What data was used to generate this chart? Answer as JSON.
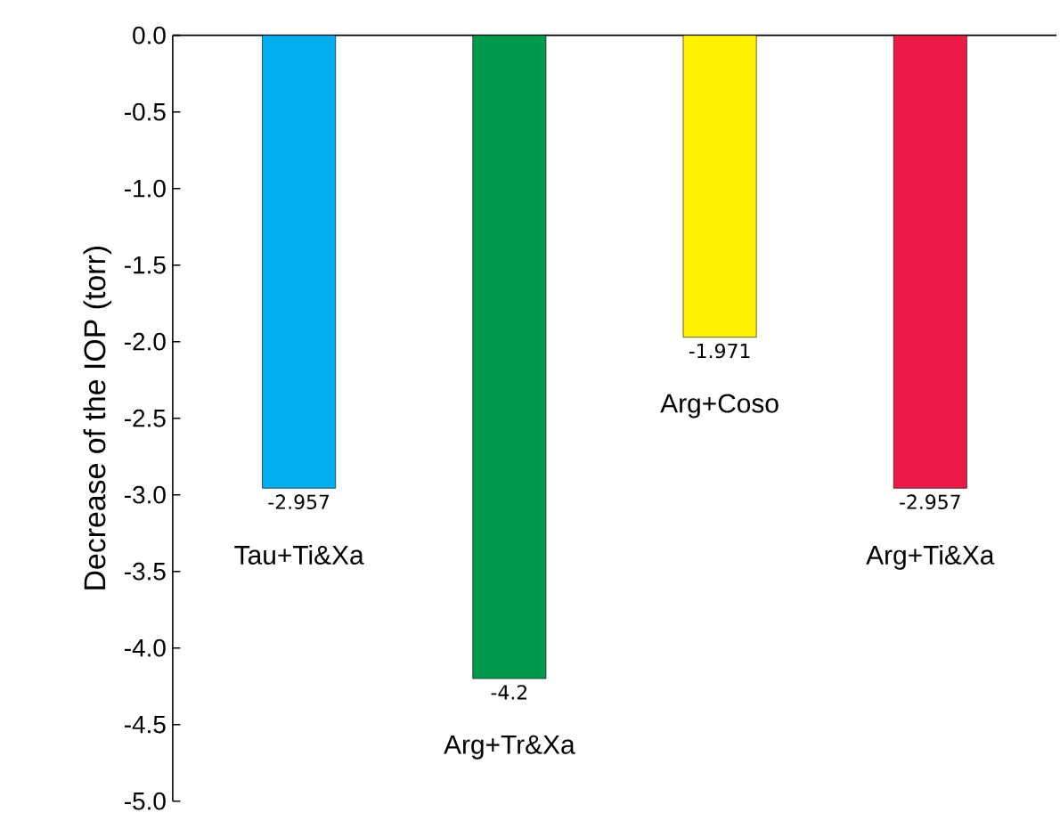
{
  "chart_data": {
    "type": "bar",
    "ylabel": "Decrease of the IOP (torr)",
    "categories": [
      "Tau+Ti&Xa",
      "Arg+Tr&Xa",
      "Arg+Coso",
      "Arg+Ti&Xa"
    ],
    "values": [
      -2.957,
      -4.2,
      -1.971,
      -2.957
    ],
    "colors": [
      "#00aeef",
      "#009a4e",
      "#fff200",
      "#ed1a47"
    ],
    "ylim": [
      -5,
      0
    ],
    "yticks": [
      {
        "value": 0,
        "label": "0.0"
      },
      {
        "value": -0.5,
        "label": "-0.5"
      },
      {
        "value": -1,
        "label": "-1.0"
      },
      {
        "value": -1.5,
        "label": "-1.5"
      },
      {
        "value": -2,
        "label": "-2.0"
      },
      {
        "value": -2.5,
        "label": "-2.5"
      },
      {
        "value": -3,
        "label": "-3.0"
      },
      {
        "value": -3.5,
        "label": "-3.5"
      },
      {
        "value": -4,
        "label": "-4.0"
      },
      {
        "value": -4.5,
        "label": "-4.5"
      },
      {
        "value": -5,
        "label": "-5.0"
      }
    ],
    "data_labels": true
  }
}
